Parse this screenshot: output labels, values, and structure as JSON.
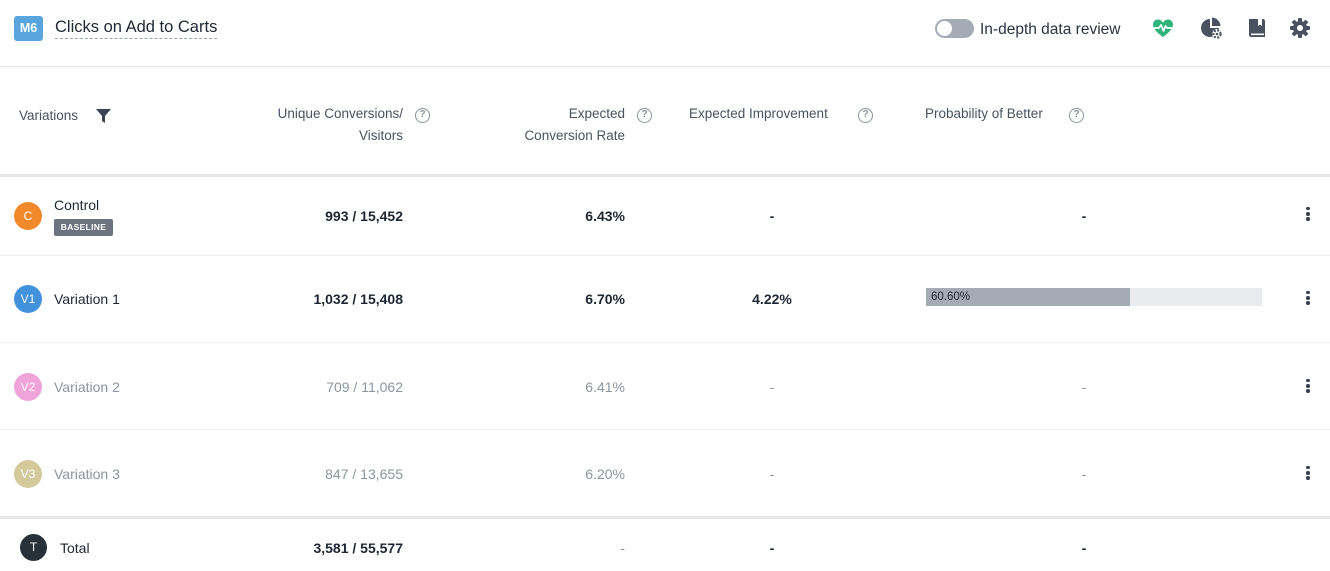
{
  "header": {
    "metric_badge": "M6",
    "metric_title": "Clicks on Add to Carts",
    "toggle_label": "In-depth data review",
    "toggle_on": false,
    "icons": [
      "heartbeat-icon",
      "pie-chart-settings-icon",
      "book-icon",
      "gear-icon"
    ],
    "heart_color": "#2fb47c"
  },
  "columns": {
    "variations": "Variations",
    "conversions_line1": "Unique Conversions/",
    "conversions_line2": "Visitors",
    "rate_line1": "Expected",
    "rate_line2": "Conversion Rate",
    "improvement": "Expected Improvement",
    "probability": "Probability of Better",
    "help_glyph": "?"
  },
  "rows": [
    {
      "avatar": "C",
      "avatar_color": "#f28a2b",
      "name": "Control",
      "badge": "BASELINE",
      "conversions": "993 / 15,452",
      "rate": "6.43%",
      "improvement": "-",
      "probability": "-"
    },
    {
      "avatar": "V1",
      "avatar_color": "#4191dc",
      "name": "Variation 1",
      "conversions": "1,032 / 15,408",
      "rate": "6.70%",
      "improvement": "4.22%",
      "probability": "60.60%",
      "probability_value": 60.6
    },
    {
      "avatar": "V2",
      "avatar_color": "#f0a3d9",
      "name": "Variation 2",
      "conversions": "709 / 11,062",
      "rate": "6.41%",
      "improvement": "-",
      "probability": "-"
    },
    {
      "avatar": "V3",
      "avatar_color": "#d4c99b",
      "name": "Variation 3",
      "conversions": "847 / 13,655",
      "rate": "6.20%",
      "improvement": "-",
      "probability": "-"
    }
  ],
  "total": {
    "avatar": "T",
    "avatar_color": "#283038",
    "name": "Total",
    "conversions": "3,581 / 55,577",
    "rate": "-",
    "improvement": "-",
    "probability": "-"
  }
}
